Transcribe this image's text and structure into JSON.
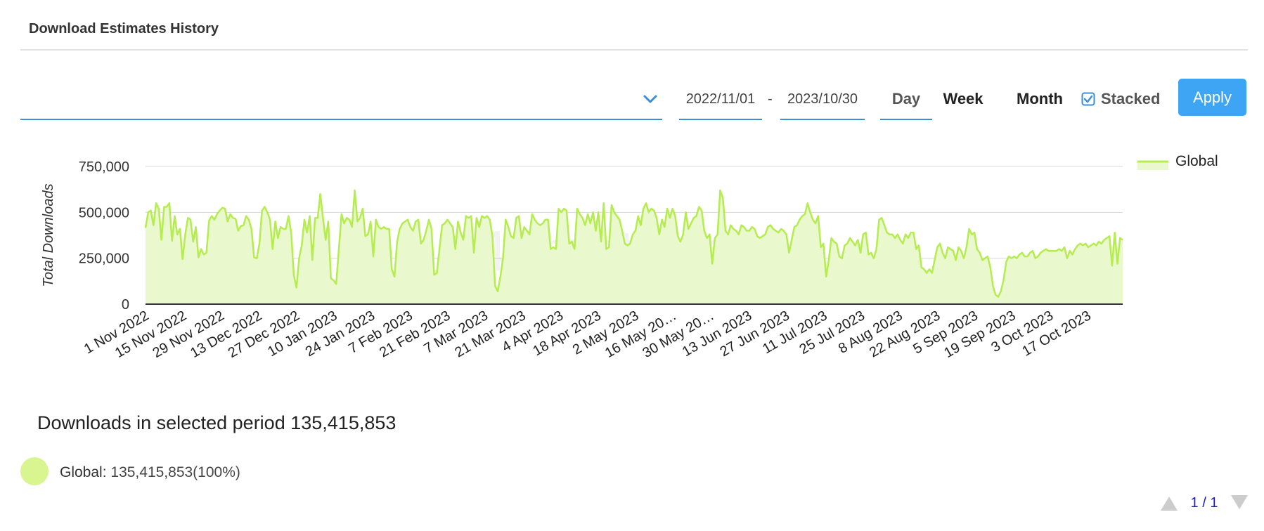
{
  "header": {
    "title": "Download Estimates History"
  },
  "controls": {
    "date_start": "2022/11/01",
    "date_separator": "-",
    "date_end": "2023/10/30",
    "periods": [
      "Day",
      "Week",
      "Month"
    ],
    "stacked_label": "Stacked",
    "stacked_checked": true,
    "apply_label": "Apply"
  },
  "colors": {
    "accent": "#3a8fd8",
    "apply": "#3ea5f5",
    "series": "#b5ec4f",
    "fill": "#eaf8ce"
  },
  "chart_data": {
    "type": "area",
    "ylabel": "Total Downloads",
    "ylim": [
      0,
      750000
    ],
    "yticks": [
      0,
      250000,
      500000,
      750000
    ],
    "ytick_labels": [
      "0",
      "250,000",
      "500,000",
      "750,000"
    ],
    "xtick_labels": [
      "1 Nov 2022",
      "15 Nov 2022",
      "29 Nov 2022",
      "13 Dec 2022",
      "27 Dec 2022",
      "10 Jan 2023",
      "24 Jan 2023",
      "7 Feb 2023",
      "21 Feb 2023",
      "7 Mar 2023",
      "21 Mar 2023",
      "4 Apr 2023",
      "18 Apr 2023",
      "2 May 2023",
      "16 May 20…",
      "30 May 20…",
      "13 Jun 2023",
      "27 Jun 2023",
      "11 Jul 2023",
      "25 Jul 2023",
      "8 Aug 2023",
      "22 Aug 2023",
      "5 Sep 2023",
      "19 Sep 2023",
      "3 Oct 2023",
      "17 Oct 2023"
    ],
    "x_start": "2022-11-01",
    "x_end": "2023-10-30",
    "legend": {
      "name": "Global",
      "position": "top-right"
    },
    "grid": true,
    "watermark": "42matters",
    "series": [
      {
        "name": "Global",
        "values": [
          415000,
          500000,
          510000,
          430000,
          550000,
          520000,
          350000,
          530000,
          530000,
          550000,
          345000,
          480000,
          380000,
          410000,
          245000,
          380000,
          470000,
          460000,
          340000,
          420000,
          255000,
          300000,
          270000,
          280000,
          455000,
          480000,
          460000,
          490000,
          510000,
          525000,
          520000,
          450000,
          490000,
          470000,
          465000,
          400000,
          425000,
          430000,
          480000,
          460000,
          410000,
          255000,
          250000,
          330000,
          510000,
          530000,
          500000,
          460000,
          300000,
          450000,
          360000,
          420000,
          410000,
          410000,
          480000,
          390000,
          160000,
          90000,
          250000,
          320000,
          460000,
          390000,
          480000,
          240000,
          470000,
          470000,
          600000,
          470000,
          350000,
          450000,
          140000,
          130000,
          110000,
          300000,
          490000,
          440000,
          470000,
          460000,
          420000,
          620000,
          450000,
          470000,
          520000,
          370000,
          380000,
          450000,
          260000,
          460000,
          420000,
          410000,
          420000,
          410000,
          410000,
          190000,
          150000,
          340000,
          410000,
          440000,
          450000,
          460000,
          420000,
          400000,
          450000,
          460000,
          330000,
          350000,
          400000,
          460000,
          410000,
          160000,
          170000,
          300000,
          430000,
          440000,
          460000,
          440000,
          420000,
          300000,
          450000,
          390000,
          350000,
          480000,
          470000,
          480000,
          280000,
          470000,
          420000,
          480000,
          470000,
          480000,
          460000,
          370000,
          100000,
          70000,
          150000,
          250000,
          460000,
          420000,
          370000,
          360000,
          470000,
          480000,
          360000,
          420000,
          400000,
          380000,
          490000,
          460000,
          440000,
          430000,
          440000,
          460000,
          460000,
          300000,
          310000,
          300000,
          520000,
          500000,
          520000,
          510000,
          330000,
          340000,
          300000,
          520000,
          490000,
          470000,
          430000,
          490000,
          440000,
          500000,
          400000,
          500000,
          340000,
          550000,
          300000,
          310000,
          540000,
          500000,
          480000,
          460000,
          400000,
          330000,
          320000,
          330000,
          380000,
          400000,
          480000,
          430000,
          520000,
          550000,
          500000,
          520000,
          510000,
          470000,
          380000,
          460000,
          420000,
          520000,
          470000,
          520000,
          480000,
          370000,
          340000,
          380000,
          500000,
          410000,
          440000,
          470000,
          480000,
          530000,
          510000,
          400000,
          360000,
          380000,
          220000,
          360000,
          380000,
          620000,
          580000,
          400000,
          380000,
          430000,
          410000,
          400000,
          380000,
          430000,
          420000,
          400000,
          400000,
          420000,
          410000,
          370000,
          360000,
          370000,
          380000,
          420000,
          430000,
          410000,
          400000,
          390000,
          410000,
          400000,
          380000,
          280000,
          350000,
          420000,
          430000,
          460000,
          480000,
          490000,
          550000,
          500000,
          460000,
          440000,
          480000,
          310000,
          330000,
          150000,
          240000,
          360000,
          340000,
          330000,
          260000,
          250000,
          320000,
          330000,
          360000,
          340000,
          320000,
          350000,
          280000,
          380000,
          390000,
          270000,
          280000,
          250000,
          300000,
          460000,
          470000,
          430000,
          390000,
          380000,
          380000,
          360000,
          380000,
          350000,
          330000,
          380000,
          360000,
          390000,
          390000,
          300000,
          320000,
          200000,
          190000,
          170000,
          190000,
          170000,
          240000,
          310000,
          330000,
          280000,
          250000,
          310000,
          300000,
          290000,
          240000,
          310000,
          290000,
          250000,
          310000,
          410000,
          380000,
          390000,
          300000,
          280000,
          240000,
          250000,
          260000,
          200000,
          100000,
          50000,
          40000,
          70000,
          130000,
          230000,
          260000,
          250000,
          260000,
          250000,
          270000,
          280000,
          260000,
          260000,
          280000,
          290000,
          250000,
          260000,
          280000,
          290000,
          300000,
          290000,
          290000,
          290000,
          290000,
          300000,
          290000,
          310000,
          250000,
          290000,
          270000,
          300000,
          320000,
          330000,
          320000,
          330000,
          310000,
          320000,
          330000,
          320000,
          340000,
          330000,
          350000,
          360000,
          370000,
          210000,
          390000,
          220000,
          360000,
          350000
        ]
      }
    ]
  },
  "summary": {
    "label": "Downloads in selected period",
    "value": "135,415,853"
  },
  "breakdown": [
    {
      "name": "Global:",
      "value": "135,415,853(100%)"
    }
  ],
  "pager": {
    "text": "1 / 1"
  }
}
